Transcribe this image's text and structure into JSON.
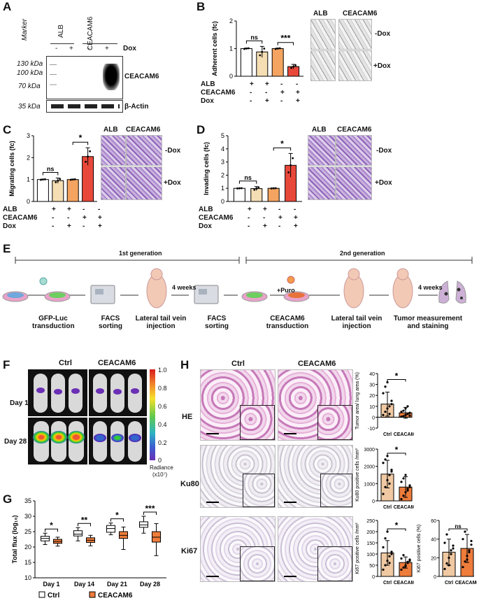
{
  "panelA": {
    "letter": "A",
    "marker": "Marker",
    "lane_labels": [
      "ALB",
      "CEACAM6"
    ],
    "dox_signs": [
      "-",
      "+",
      "-",
      "+"
    ],
    "dox_label": "Dox",
    "kda": [
      "130 kDa",
      "100 kDa",
      "70 kDa",
      "35 kDa"
    ],
    "band_labels": [
      "CEACAM6",
      "β-Actin"
    ]
  },
  "panelB": {
    "letter": "B",
    "image_labels": [
      "ALB",
      "CEACAM6"
    ],
    "row_labels": [
      "-Dox",
      "+Dox"
    ]
  },
  "panelC": {
    "letter": "C",
    "image_labels": [
      "ALB",
      "CEACAM6"
    ],
    "row_labels": [
      "-Dox",
      "+Dox"
    ]
  },
  "panelD": {
    "letter": "D",
    "image_labels": [
      "ALB",
      "CEACAM6"
    ],
    "row_labels": [
      "-Dox",
      "+Dox"
    ]
  },
  "condition_table": {
    "row_labels": [
      "ALB",
      "CEACAM6",
      "Dox"
    ],
    "rows": [
      [
        "+",
        "+",
        "-",
        "-"
      ],
      [
        "-",
        "-",
        "+",
        "+"
      ],
      [
        "-",
        "+",
        "-",
        "+"
      ]
    ]
  },
  "panelE": {
    "letter": "E",
    "gen1": "1st generation",
    "gen2": "2nd generation",
    "steps": [
      "GFP-Luc transduction",
      "FACS sorting",
      "Lateral tail vein injection",
      "FACS sorting",
      "CEACAM6 transduction",
      "Lateral tail vein injection",
      "Tumor measurement and staining"
    ],
    "four_weeks": "4 weeks",
    "puro": "+Puro"
  },
  "panelF": {
    "letter": "F",
    "groups": [
      "Ctrl",
      "CEACAM6"
    ],
    "days": [
      "Day 1",
      "Day 28"
    ],
    "colorbar_ticks": [
      "1.0",
      "0.8",
      "0.6",
      "0.4",
      "0.2",
      "0"
    ],
    "colorbar_label": "Radiance",
    "colorbar_unit": "(x10⁷)"
  },
  "panelG": {
    "letter": "G"
  },
  "panelH": {
    "letter": "H",
    "groups": [
      "Ctrl",
      "CEACAM6"
    ],
    "stains": [
      "HE",
      "Ku80",
      "Ki67"
    ]
  },
  "chart_data": [
    {
      "id": "B",
      "type": "bar",
      "categories": [
        "1",
        "2",
        "3",
        "4"
      ],
      "values": [
        1.0,
        0.88,
        1.0,
        0.35
      ],
      "errors": [
        0.02,
        0.2,
        0.02,
        0.08
      ],
      "colors": [
        "#ffffff",
        "#f5deb3",
        "#f4a460",
        "#e8483a"
      ],
      "ylabel": "Adherent cells (fc)",
      "ylim": [
        0,
        2
      ],
      "yticks": [
        "0",
        "1",
        "2"
      ],
      "sig": [
        {
          "from": 0,
          "to": 1,
          "label": "ns"
        },
        {
          "from": 2,
          "to": 3,
          "label": "***"
        }
      ]
    },
    {
      "id": "C",
      "type": "bar",
      "categories": [
        "1",
        "2",
        "3",
        "4"
      ],
      "values": [
        1.0,
        0.95,
        1.0,
        2.05
      ],
      "errors": [
        0.02,
        0.12,
        0.02,
        0.4
      ],
      "colors": [
        "#ffffff",
        "#f5deb3",
        "#f4a460",
        "#e8483a"
      ],
      "ylabel": "Migrating cells (fc)",
      "ylim": [
        0,
        3
      ],
      "yticks": [
        "0",
        "1",
        "2",
        "3"
      ],
      "sig": [
        {
          "from": 0,
          "to": 1,
          "label": "ns"
        },
        {
          "from": 2,
          "to": 3,
          "label": "*"
        }
      ]
    },
    {
      "id": "D",
      "type": "bar",
      "categories": [
        "1",
        "2",
        "3",
        "4"
      ],
      "values": [
        1.0,
        0.98,
        1.0,
        2.75
      ],
      "errors": [
        0.02,
        0.15,
        0.02,
        0.9
      ],
      "colors": [
        "#ffffff",
        "#f5deb3",
        "#f4a460",
        "#e8483a"
      ],
      "ylabel": "Invading cells (fc)",
      "ylim": [
        0,
        5
      ],
      "yticks": [
        "0",
        "1",
        "2",
        "3",
        "4",
        "5"
      ],
      "sig": [
        {
          "from": 0,
          "to": 1,
          "label": "ns"
        },
        {
          "from": 2,
          "to": 3,
          "label": "*"
        }
      ]
    },
    {
      "id": "G",
      "type": "box",
      "categories": [
        "Day 1",
        "Day 14",
        "Day 21",
        "Day 28"
      ],
      "ylabel": "Total flux (log₁₀)",
      "ylim": [
        10,
        35
      ],
      "yticks": [
        "10",
        "15",
        "20",
        "25",
        "30",
        "35"
      ],
      "series": [
        {
          "name": "Ctrl",
          "color": "#ffffff",
          "boxes": [
            [
              20.8,
              22,
              22.8,
              23.5,
              24.5
            ],
            [
              22,
              23.6,
              24.2,
              25.3,
              26.3
            ],
            [
              24,
              24.8,
              26,
              27,
              27.8
            ],
            [
              24.5,
              26.4,
              27.2,
              28.2,
              30
            ]
          ]
        },
        {
          "name": "CEACAM6",
          "color": "#ee7c3b",
          "boxes": [
            [
              20.3,
              21.2,
              21.8,
              22.5,
              23.2
            ],
            [
              20.4,
              21.5,
              22.2,
              23,
              23.8
            ],
            [
              19.2,
              22.8,
              23.8,
              25,
              26.5
            ],
            [
              17.2,
              21.6,
              23.2,
              25,
              27.6
            ]
          ]
        }
      ],
      "sig": [
        "*",
        "**",
        "*",
        "***"
      ],
      "legend": [
        "Ctrl",
        "CEACAM6"
      ]
    },
    {
      "id": "H-HE",
      "type": "bar",
      "categories": [
        "Ctrl",
        "CEACAM6"
      ],
      "values": [
        12,
        4
      ],
      "errors": [
        11,
        5
      ],
      "colors": [
        "#f0c9a2",
        "#ee7c3b"
      ],
      "points": [
        [
          2,
          5,
          8,
          10,
          15,
          22,
          28,
          32,
          3,
          12
        ],
        [
          0.5,
          1,
          2,
          3,
          4,
          5,
          6,
          8,
          10,
          1.5
        ]
      ],
      "ylabel": "Tumor area/ lung area (%)",
      "ylim": [
        -10,
        40
      ],
      "yticks": [
        "-10",
        "0",
        "10",
        "20",
        "30",
        "40"
      ],
      "sig": "*"
    },
    {
      "id": "H-Ku80",
      "type": "bar",
      "categories": [
        "Ctrl",
        "CEACAM6"
      ],
      "values": [
        1550,
        800
      ],
      "errors": [
        800,
        600
      ],
      "colors": [
        "#f0c9a2",
        "#ee7c3b"
      ],
      "points": [
        [
          400,
          800,
          1200,
          1500,
          1800,
          2200,
          2400,
          2600,
          1000,
          1700
        ],
        [
          100,
          300,
          500,
          700,
          900,
          1100,
          1300,
          1500,
          600,
          800
        ]
      ],
      "ylabel": "Ku80 positive cells /mm²",
      "ylim": [
        0,
        3000
      ],
      "yticks": [
        "0",
        "1000",
        "2000",
        "3000"
      ],
      "sig": "*"
    },
    {
      "id": "H-Ki67-density",
      "type": "bar",
      "categories": [
        "Ctrl",
        "CEACAM6"
      ],
      "values": [
        105,
        62
      ],
      "errors": [
        55,
        25
      ],
      "colors": [
        "#f0c9a2",
        "#ee7c3b"
      ],
      "points": [
        [
          30,
          50,
          70,
          90,
          110,
          130,
          170,
          200,
          60,
          100
        ],
        [
          30,
          40,
          50,
          60,
          70,
          80,
          95,
          45,
          65,
          75
        ]
      ],
      "ylabel": "Ki67 positive cells /mm²",
      "ylim": [
        0,
        250
      ],
      "yticks": [
        "0",
        "50",
        "100",
        "150",
        "200",
        "250"
      ],
      "sig": "*"
    },
    {
      "id": "H-Ki67-pct",
      "type": "bar",
      "categories": [
        "Ctrl",
        "CEACAM6"
      ],
      "values": [
        26,
        30
      ],
      "errors": [
        14,
        15
      ],
      "colors": [
        "#f0c9a2",
        "#ee7c3b"
      ],
      "points": [
        [
          8,
          14,
          20,
          24,
          30,
          36,
          45,
          12,
          28,
          33
        ],
        [
          10,
          16,
          22,
          28,
          34,
          40,
          48,
          18,
          26,
          38
        ]
      ],
      "ylabel": "Ki67 positive cells (%)",
      "ylim": [
        0,
        60
      ],
      "yticks": [
        "0",
        "20",
        "40",
        "60"
      ],
      "xlabels": [
        "Ctrl",
        "CEACAM6"
      ],
      "sig": "ns"
    }
  ]
}
